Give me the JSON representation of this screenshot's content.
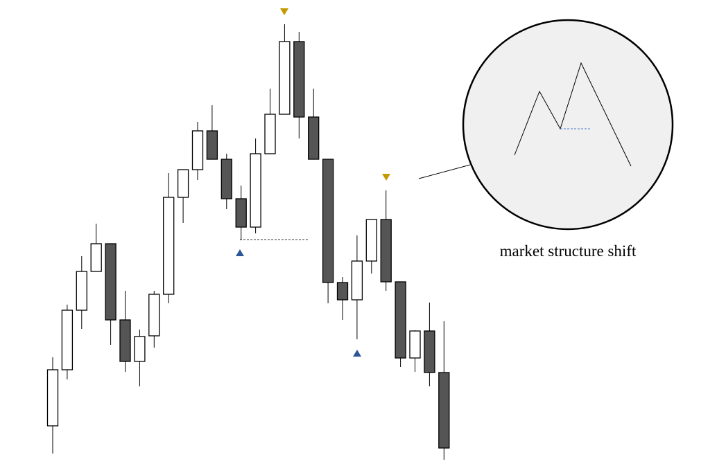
{
  "chart_data": {
    "type": "candlestick",
    "open": [
      65,
      146,
      232,
      288,
      328,
      218,
      158,
      195,
      255,
      395,
      435,
      491,
      450,
      393,
      352,
      458,
      515,
      620,
      511,
      450,
      272,
      247,
      303,
      363,
      273,
      163,
      202,
      142
    ],
    "high": [
      164,
      240,
      310,
      357,
      328,
      260,
      204,
      260,
      430,
      435,
      504,
      528,
      458,
      412,
      480,
      552,
      645,
      634,
      552,
      450,
      280,
      340,
      363,
      405,
      273,
      203,
      243,
      216
    ],
    "low": [
      25,
      132,
      205,
      288,
      182,
      143,
      122,
      178,
      242,
      358,
      420,
      450,
      378,
      333,
      343,
      458,
      515,
      480,
      450,
      242,
      218,
      190,
      285,
      260,
      150,
      143,
      122,
      16
    ],
    "close": [
      146,
      232,
      288,
      328,
      218,
      158,
      194,
      255,
      395,
      435,
      491,
      450,
      393,
      352,
      458,
      515,
      620,
      511,
      450,
      272,
      247,
      303,
      363,
      273,
      163,
      202,
      142,
      33
    ],
    "ylim": [
      0,
      680
    ],
    "up_color": "#ffffff",
    "down_color": "#555555",
    "annotation": "market structure shift"
  }
}
